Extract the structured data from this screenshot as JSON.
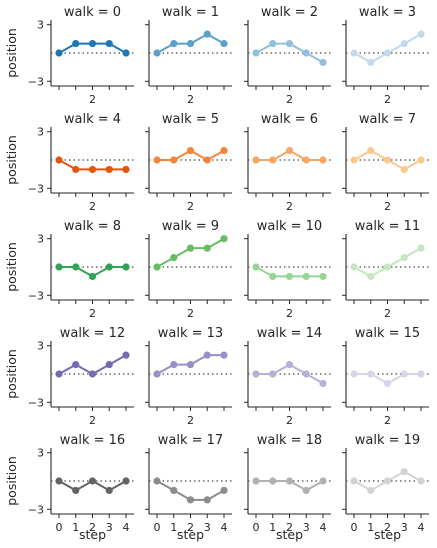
{
  "chart_data": {
    "type": "line",
    "x": [
      0,
      1,
      2,
      3,
      4
    ],
    "ylim": [
      -3.5,
      3.5
    ],
    "y_ticks": [
      -3,
      3
    ],
    "y_tick_labels": [
      "−3",
      "3"
    ],
    "x_ticks": [
      0,
      1,
      2,
      3,
      4
    ],
    "x_tick_labels": [
      "0",
      "1",
      "2",
      "3",
      "4"
    ],
    "xlabel": "step",
    "ylabel": "position",
    "reference_line": 0,
    "grid": false,
    "panels": [
      {
        "title": "walk = 0",
        "color": "#1f77b4",
        "values": [
          0,
          1,
          1,
          1,
          0
        ]
      },
      {
        "title": "walk = 1",
        "color": "#5aa0c9",
        "values": [
          0,
          1,
          1,
          2,
          1
        ]
      },
      {
        "title": "walk = 2",
        "color": "#90c0dc",
        "values": [
          0,
          1,
          1,
          0,
          -1
        ]
      },
      {
        "title": "walk = 3",
        "color": "#c2daeb",
        "values": [
          0,
          -1,
          0,
          1,
          2
        ]
      },
      {
        "title": "walk = 4",
        "color": "#e6550d",
        "values": [
          0,
          -1,
          -1,
          -1,
          -1
        ]
      },
      {
        "title": "walk = 5",
        "color": "#f2853a",
        "values": [
          0,
          0,
          1,
          0,
          1
        ]
      },
      {
        "title": "walk = 6",
        "color": "#f7a663",
        "values": [
          0,
          0,
          1,
          0,
          0
        ]
      },
      {
        "title": "walk = 7",
        "color": "#fbc88e",
        "values": [
          0,
          1,
          0,
          -1,
          0
        ]
      },
      {
        "title": "walk = 8",
        "color": "#31a354",
        "values": [
          0,
          0,
          -1,
          0,
          0
        ]
      },
      {
        "title": "walk = 9",
        "color": "#66bd63",
        "values": [
          0,
          1,
          2,
          2,
          3
        ]
      },
      {
        "title": "walk = 10",
        "color": "#98d494",
        "values": [
          0,
          -1,
          -1,
          -1,
          -1
        ]
      },
      {
        "title": "walk = 11",
        "color": "#c4e7c0",
        "values": [
          0,
          -1,
          0,
          1,
          2
        ]
      },
      {
        "title": "walk = 12",
        "color": "#756bb1",
        "values": [
          0,
          1,
          0,
          1,
          2
        ]
      },
      {
        "title": "walk = 13",
        "color": "#9590c6",
        "values": [
          0,
          1,
          1,
          2,
          2
        ]
      },
      {
        "title": "walk = 14",
        "color": "#b5b2d8",
        "values": [
          0,
          0,
          1,
          0,
          -1
        ]
      },
      {
        "title": "walk = 15",
        "color": "#d6d4ea",
        "values": [
          0,
          0,
          -1,
          0,
          0
        ]
      },
      {
        "title": "walk = 16",
        "color": "#636363",
        "values": [
          0,
          -1,
          0,
          -1,
          0
        ]
      },
      {
        "title": "walk = 17",
        "color": "#8c8c8c",
        "values": [
          0,
          -1,
          -2,
          -2,
          -1
        ]
      },
      {
        "title": "walk = 18",
        "color": "#b1b1b1",
        "values": [
          0,
          0,
          0,
          -1,
          0
        ]
      },
      {
        "title": "walk = 19",
        "color": "#d3d3d3",
        "values": [
          0,
          -1,
          0,
          1,
          0
        ]
      }
    ]
  }
}
